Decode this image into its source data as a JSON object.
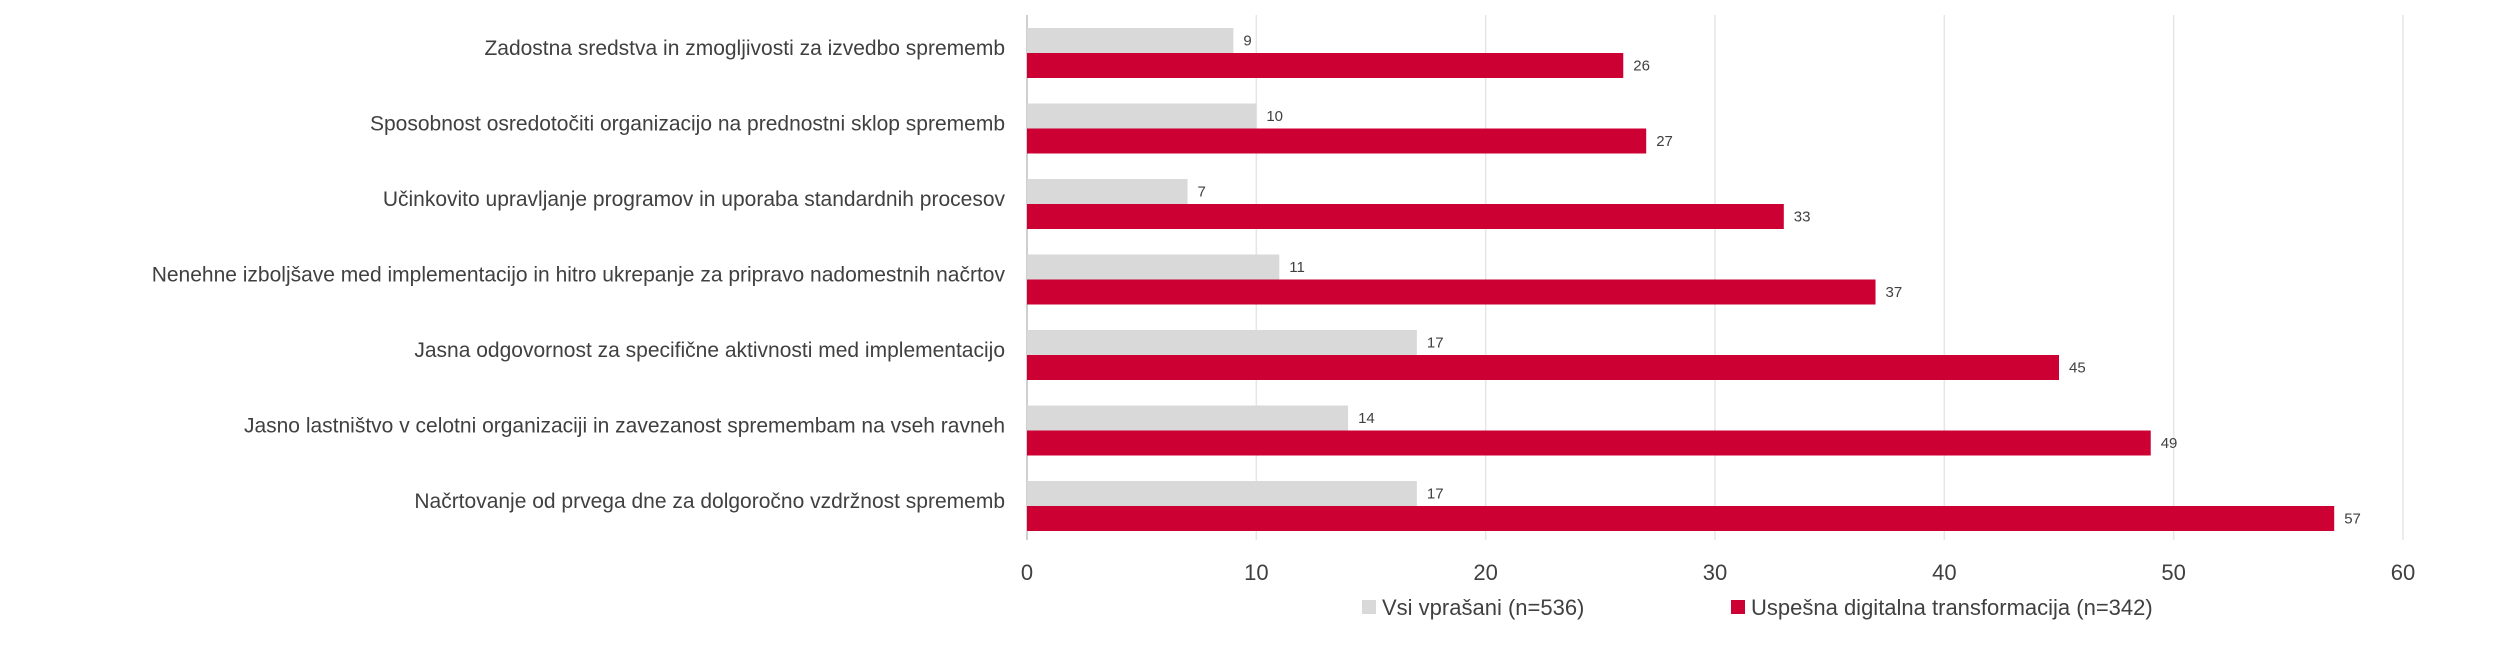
{
  "chart_data": {
    "type": "bar",
    "orientation": "horizontal",
    "categories": [
      "Zadostna sredstva in zmogljivosti za izvedbo sprememb",
      "Sposobnost osredotočiti organizacijo na prednostni sklop sprememb",
      "Učinkovito upravljanje programov in uporaba standardnih procesov",
      "Nenehne izboljšave med implementacijo in hitro ukrepanje za pripravo nadomestnih načrtov",
      "Jasna odgovornost za specifične aktivnosti med implementacijo",
      "Jasno lastništvo v celotni organizaciji in zavezanost spremembam na vseh ravneh",
      "Načrtovanje od prvega dne za dolgoročno vzdržnost sprememb"
    ],
    "series": [
      {
        "name": "Vsi vprašani (n=536)",
        "color": "#d9d9d9",
        "values": [
          9,
          10,
          7,
          11,
          17,
          14,
          17
        ]
      },
      {
        "name": "Uspešna digitalna transformacija (n=342)",
        "color": "#cc0033",
        "values": [
          26,
          27,
          33,
          37,
          45,
          49,
          57
        ]
      }
    ],
    "xlim": [
      0,
      60
    ],
    "xticks": [
      0,
      10,
      20,
      30,
      40,
      50,
      60
    ],
    "grid": true,
    "legend_position": "bottom",
    "data_labels": true
  }
}
